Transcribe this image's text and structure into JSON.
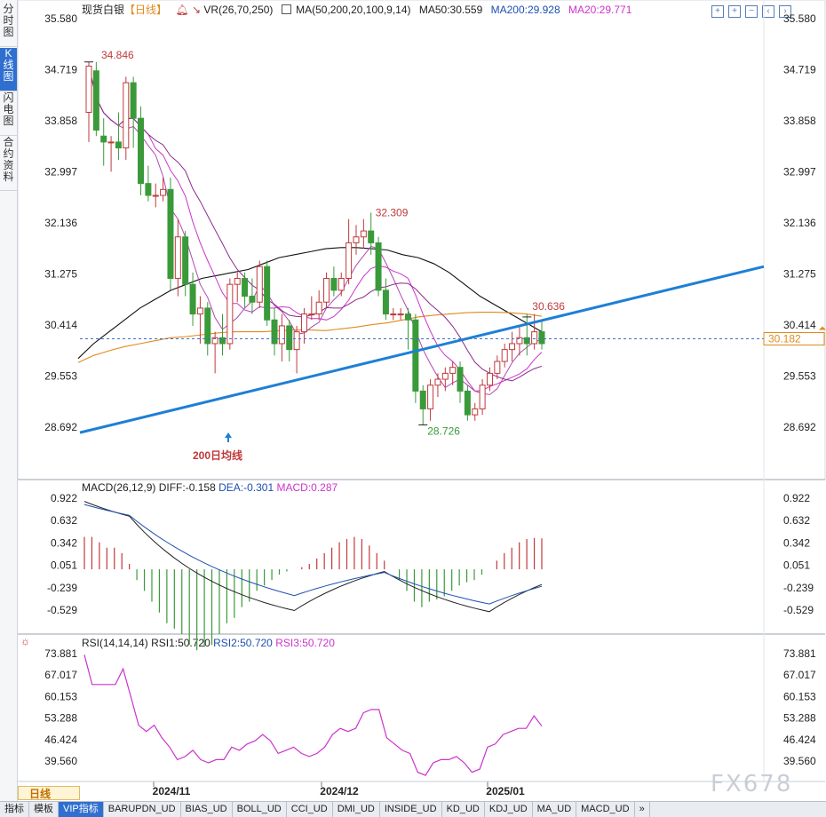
{
  "sidebar": {
    "tabs": [
      {
        "label": "分时图",
        "active": false
      },
      {
        "label": "K线图",
        "active": true
      },
      {
        "label": "闪电图",
        "active": false
      },
      {
        "label": "合约资料",
        "active": false
      }
    ]
  },
  "header": {
    "instrument": "现货白银",
    "period_tag": "【日线】",
    "vr_label": "VR(26,70,250)",
    "ma_label": "MA(50,200,20,100,9,14)",
    "ma50": "MA50:30.559",
    "ma200": "MA200:29.928",
    "ma20": "MA20:29.771"
  },
  "macd_header": {
    "label": "MACD(26,12,9)",
    "diff": "DIFF:-0.158",
    "dea": "DEA:-0.301",
    "macd": "MACD:0.287"
  },
  "rsi_header": {
    "label": "RSI(14,14,14)",
    "rsi1": "RSI1:50.720",
    "rsi2": "RSI2:50.720",
    "rsi3": "RSI3:50.720"
  },
  "colors": {
    "up": "#c0393b",
    "down": "#3a9a3a",
    "ma50": "#e08a1e",
    "ma200": "#111111",
    "ma20": "#cc33cc",
    "trend": "#1e7fd6",
    "rsi": "#cc33cc",
    "accent": "#2f6fcf"
  },
  "bottombar": {
    "period": "日线",
    "tabs": [
      "指标",
      "模板",
      "VIP指标",
      "BARUPDN_UD",
      "BIAS_UD",
      "BOLL_UD",
      "CCI_UD",
      "DMI_UD",
      "INSIDE_UD",
      "KD_UD",
      "KDJ_UD",
      "MA_UD",
      "MACD_UD",
      "»"
    ],
    "active_index": 2
  },
  "watermark": "FX678",
  "chart_data": [
    {
      "type": "candlestick",
      "title": "现货白银 日线",
      "y_ticks": [
        "35.580",
        "34.719",
        "33.858",
        "32.997",
        "32.136",
        "31.275",
        "30.414",
        "29.553",
        "28.692"
      ],
      "ylim": [
        28.0,
        35.7
      ],
      "x_ticks": [
        "2024/11",
        "2024/12",
        "2025/01"
      ],
      "current_price": "30.182",
      "annotations": {
        "high_1": "34.846",
        "high_2": "32.309",
        "low_1": "28.726",
        "recent_high": "30.636",
        "ma200_note": "200日均线"
      },
      "candles": [
        {
          "o": 34.0,
          "h": 34.85,
          "l": 33.5,
          "c": 34.78
        },
        {
          "o": 34.7,
          "h": 34.85,
          "l": 33.6,
          "c": 33.7
        },
        {
          "o": 33.6,
          "h": 33.9,
          "l": 33.1,
          "c": 33.5
        },
        {
          "o": 33.5,
          "h": 33.6,
          "l": 33.0,
          "c": 33.5
        },
        {
          "o": 33.5,
          "h": 34.0,
          "l": 33.2,
          "c": 33.4
        },
        {
          "o": 33.4,
          "h": 34.6,
          "l": 33.2,
          "c": 34.5
        },
        {
          "o": 34.5,
          "h": 34.6,
          "l": 33.4,
          "c": 33.9
        },
        {
          "o": 33.9,
          "h": 34.1,
          "l": 32.6,
          "c": 32.8
        },
        {
          "o": 32.8,
          "h": 33.1,
          "l": 32.5,
          "c": 32.6
        },
        {
          "o": 32.6,
          "h": 32.8,
          "l": 32.4,
          "c": 32.6
        },
        {
          "o": 32.6,
          "h": 32.9,
          "l": 32.5,
          "c": 32.7
        },
        {
          "o": 32.7,
          "h": 32.9,
          "l": 31.0,
          "c": 31.2
        },
        {
          "o": 31.2,
          "h": 32.2,
          "l": 30.9,
          "c": 31.9
        },
        {
          "o": 31.9,
          "h": 32.0,
          "l": 30.9,
          "c": 31.1
        },
        {
          "o": 31.1,
          "h": 31.3,
          "l": 30.4,
          "c": 30.6
        },
        {
          "o": 30.6,
          "h": 30.9,
          "l": 30.1,
          "c": 30.7
        },
        {
          "o": 30.7,
          "h": 30.8,
          "l": 29.9,
          "c": 30.1
        },
        {
          "o": 30.1,
          "h": 30.3,
          "l": 29.6,
          "c": 30.2
        },
        {
          "o": 30.2,
          "h": 30.6,
          "l": 29.9,
          "c": 30.1
        },
        {
          "o": 30.1,
          "h": 31.2,
          "l": 30.0,
          "c": 31.1
        },
        {
          "o": 31.1,
          "h": 31.3,
          "l": 30.8,
          "c": 31.2
        },
        {
          "o": 31.2,
          "h": 31.3,
          "l": 30.7,
          "c": 30.9
        },
        {
          "o": 30.9,
          "h": 31.2,
          "l": 30.6,
          "c": 30.8
        },
        {
          "o": 30.8,
          "h": 31.5,
          "l": 30.7,
          "c": 31.4
        },
        {
          "o": 31.4,
          "h": 31.5,
          "l": 30.4,
          "c": 30.5
        },
        {
          "o": 30.5,
          "h": 30.7,
          "l": 29.9,
          "c": 30.1
        },
        {
          "o": 30.1,
          "h": 30.6,
          "l": 29.8,
          "c": 30.4
        },
        {
          "o": 30.4,
          "h": 30.5,
          "l": 29.8,
          "c": 30.0
        },
        {
          "o": 30.0,
          "h": 30.4,
          "l": 29.6,
          "c": 30.3
        },
        {
          "o": 30.3,
          "h": 30.7,
          "l": 30.1,
          "c": 30.6
        },
        {
          "o": 30.6,
          "h": 30.9,
          "l": 30.5,
          "c": 30.6
        },
        {
          "o": 30.6,
          "h": 31.0,
          "l": 30.5,
          "c": 30.8
        },
        {
          "o": 30.8,
          "h": 31.3,
          "l": 30.7,
          "c": 31.2
        },
        {
          "o": 31.2,
          "h": 31.4,
          "l": 30.9,
          "c": 31.0
        },
        {
          "o": 31.0,
          "h": 31.3,
          "l": 30.9,
          "c": 31.2
        },
        {
          "o": 31.2,
          "h": 32.2,
          "l": 31.1,
          "c": 31.8
        },
        {
          "o": 31.8,
          "h": 32.1,
          "l": 31.6,
          "c": 31.9
        },
        {
          "o": 31.9,
          "h": 32.2,
          "l": 31.7,
          "c": 32.0
        },
        {
          "o": 32.0,
          "h": 32.31,
          "l": 31.6,
          "c": 31.8
        },
        {
          "o": 31.8,
          "h": 31.9,
          "l": 30.9,
          "c": 31.0
        },
        {
          "o": 31.0,
          "h": 31.2,
          "l": 30.5,
          "c": 30.6
        },
        {
          "o": 30.6,
          "h": 30.7,
          "l": 30.5,
          "c": 30.6
        },
        {
          "o": 30.6,
          "h": 30.7,
          "l": 30.5,
          "c": 30.6
        },
        {
          "o": 30.6,
          "h": 30.7,
          "l": 30.0,
          "c": 30.5
        },
        {
          "o": 30.5,
          "h": 30.6,
          "l": 29.1,
          "c": 29.3
        },
        {
          "o": 29.3,
          "h": 29.4,
          "l": 28.73,
          "c": 29.0
        },
        {
          "o": 29.0,
          "h": 29.5,
          "l": 28.8,
          "c": 29.4
        },
        {
          "o": 29.4,
          "h": 29.6,
          "l": 29.2,
          "c": 29.5
        },
        {
          "o": 29.5,
          "h": 29.7,
          "l": 29.3,
          "c": 29.6
        },
        {
          "o": 29.6,
          "h": 29.8,
          "l": 29.4,
          "c": 29.7
        },
        {
          "o": 29.7,
          "h": 29.8,
          "l": 29.1,
          "c": 29.3
        },
        {
          "o": 29.3,
          "h": 29.4,
          "l": 28.8,
          "c": 28.9
        },
        {
          "o": 28.9,
          "h": 29.1,
          "l": 28.8,
          "c": 29.0
        },
        {
          "o": 29.0,
          "h": 29.5,
          "l": 28.9,
          "c": 29.4
        },
        {
          "o": 29.4,
          "h": 29.7,
          "l": 29.3,
          "c": 29.6
        },
        {
          "o": 29.6,
          "h": 29.9,
          "l": 29.5,
          "c": 29.8
        },
        {
          "o": 29.8,
          "h": 30.1,
          "l": 29.7,
          "c": 30.0
        },
        {
          "o": 30.0,
          "h": 30.3,
          "l": 29.8,
          "c": 30.1
        },
        {
          "o": 30.1,
          "h": 30.4,
          "l": 29.9,
          "c": 30.2
        },
        {
          "o": 30.2,
          "h": 30.6,
          "l": 29.9,
          "c": 30.1
        },
        {
          "o": 30.1,
          "h": 30.6,
          "l": 30.0,
          "c": 30.3
        },
        {
          "o": 30.3,
          "h": 30.5,
          "l": 30.0,
          "c": 30.1
        }
      ],
      "ma_lines": [
        {
          "name": "MA200",
          "points": [
            29.85,
            30.1,
            30.3,
            30.5,
            30.7,
            30.85,
            31.0,
            31.1,
            31.2,
            31.25,
            31.3,
            31.35,
            31.45,
            31.55,
            31.6,
            31.65,
            31.7,
            31.72,
            31.72,
            31.7,
            31.68,
            31.6,
            31.55,
            31.45,
            31.3,
            31.1,
            30.9,
            30.75,
            30.6,
            30.45,
            30.3
          ]
        },
        {
          "name": "MA50",
          "points": [
            29.78,
            29.9,
            29.98,
            30.05,
            30.1,
            30.15,
            30.2,
            30.22,
            30.25,
            30.28,
            30.3,
            30.3,
            30.3,
            30.32,
            30.33,
            30.33,
            30.32,
            30.35,
            30.38,
            30.42,
            30.45,
            30.5,
            30.55,
            30.58,
            30.6,
            30.62,
            30.63,
            30.63,
            30.62,
            30.6,
            30.56
          ]
        }
      ],
      "trendline": {
        "from": [
          0,
          28.6
        ],
        "to": [
          79,
          31.4
        ]
      }
    },
    {
      "type": "bar",
      "title": "MACD(26,12,9)",
      "y_ticks": [
        "0.922",
        "0.632",
        "0.342",
        "0.051",
        "-0.239",
        "-0.529"
      ],
      "ylim": [
        -0.75,
        1.0
      ],
      "values": [
        0.3,
        0.3,
        0.25,
        0.2,
        0.2,
        0.15,
        0.05,
        -0.1,
        -0.2,
        -0.3,
        -0.4,
        -0.5,
        -0.55,
        -0.6,
        -0.7,
        -0.75,
        -0.72,
        -0.7,
        -0.6,
        -0.5,
        -0.45,
        -0.35,
        -0.3,
        -0.2,
        -0.15,
        -0.1,
        -0.05,
        -0.02,
        0.0,
        0.02,
        0.05,
        0.1,
        0.15,
        0.2,
        0.25,
        0.28,
        0.3,
        0.28,
        0.22,
        0.15,
        0.08,
        0.0,
        -0.1,
        -0.2,
        -0.3,
        -0.35,
        -0.3,
        -0.28,
        -0.25,
        -0.2,
        -0.15,
        -0.12,
        -0.1,
        -0.05,
        0.0,
        0.08,
        0.15,
        0.2,
        0.25,
        0.28,
        0.29,
        0.287
      ]
    },
    {
      "type": "line",
      "title": "RSI(14,14,14)",
      "y_ticks": [
        "73.881",
        "67.017",
        "60.153",
        "53.288",
        "46.424",
        "39.560"
      ],
      "ylim": [
        35,
        76
      ],
      "values": [
        73.5,
        64,
        64,
        64,
        64,
        69,
        60,
        51,
        49,
        51,
        47,
        44,
        40,
        41,
        43,
        40,
        39,
        40,
        40,
        44,
        43,
        45,
        46,
        48,
        46,
        42,
        43,
        44,
        42,
        41,
        42,
        44,
        48,
        50,
        49,
        50,
        55,
        56,
        56,
        47,
        45,
        43,
        42,
        36,
        35,
        39,
        40,
        40,
        41,
        39,
        36,
        37,
        44,
        45,
        48,
        49,
        50,
        50,
        54,
        50.7
      ]
    }
  ]
}
